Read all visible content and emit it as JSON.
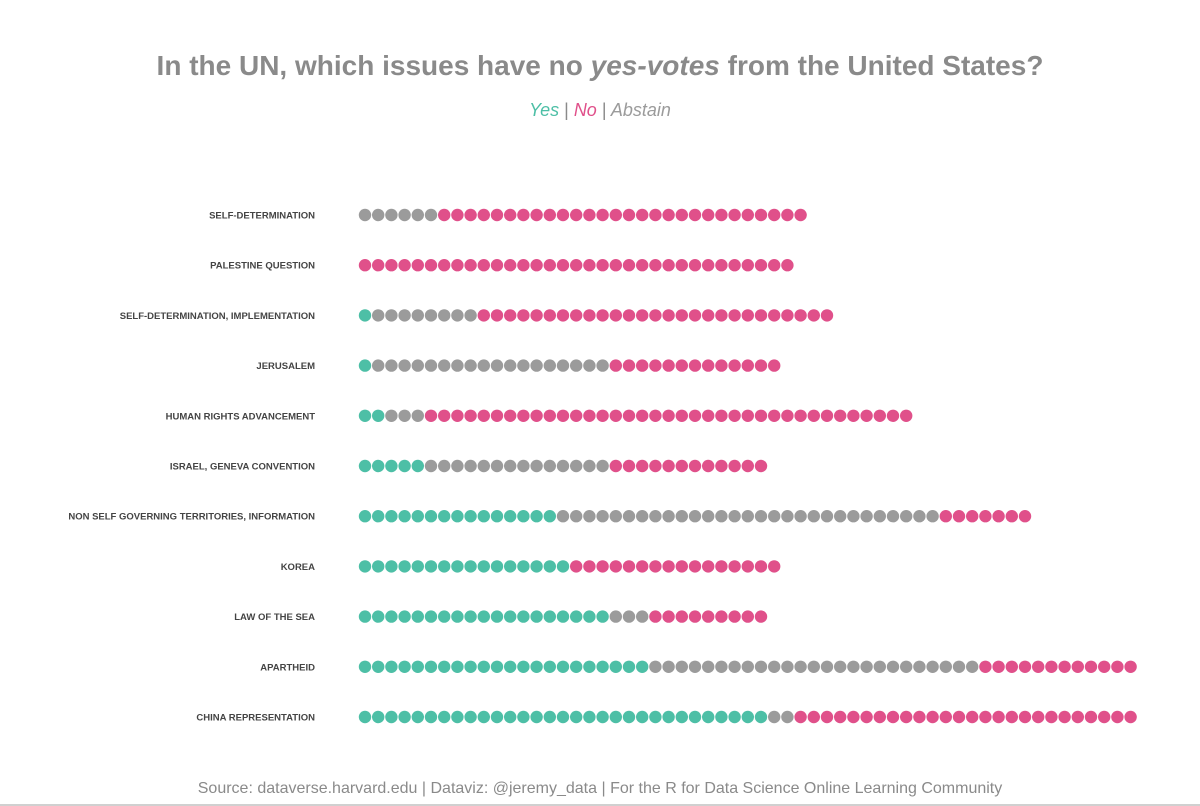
{
  "chart_data": {
    "type": "dot-plot",
    "title_parts": [
      "In the UN, which issues have no ",
      "yes-votes",
      " from the United States?"
    ],
    "legend": [
      {
        "label": "Yes",
        "color": "#4dbfa6"
      },
      {
        "label": "No",
        "color": "#e0508a"
      },
      {
        "label": "Abstain",
        "color": "#9b9b9b"
      }
    ],
    "legend_separator": "|",
    "categories": [
      {
        "label": "SELF-DETERMINATION",
        "yes": 0,
        "abstain": 6,
        "no": 28
      },
      {
        "label": "PALESTINE QUESTION",
        "yes": 0,
        "abstain": 0,
        "no": 33
      },
      {
        "label": "SELF-DETERMINATION, IMPLEMENTATION",
        "yes": 1,
        "abstain": 8,
        "no": 27
      },
      {
        "label": "JERUSALEM",
        "yes": 1,
        "abstain": 18,
        "no": 13
      },
      {
        "label": "HUMAN RIGHTS ADVANCEMENT",
        "yes": 2,
        "abstain": 3,
        "no": 37
      },
      {
        "label": "ISRAEL, GENEVA CONVENTION",
        "yes": 5,
        "abstain": 14,
        "no": 12
      },
      {
        "label": "NON SELF GOVERNING TERRITORIES, INFORMATION",
        "yes": 15,
        "abstain": 29,
        "no": 7
      },
      {
        "label": "KOREA",
        "yes": 16,
        "abstain": 0,
        "no": 16
      },
      {
        "label": "LAW OF THE SEA",
        "yes": 19,
        "abstain": 3,
        "no": 9
      },
      {
        "label": "APARTHEID",
        "yes": 22,
        "abstain": 25,
        "no": 12
      },
      {
        "label": "CHINA REPRESENTATION",
        "yes": 31,
        "abstain": 2,
        "no": 26
      }
    ]
  },
  "source": "Source: dataverse.harvard.edu | Dataviz: @jeremy_data | For the R for Data Science Online Learning Community"
}
